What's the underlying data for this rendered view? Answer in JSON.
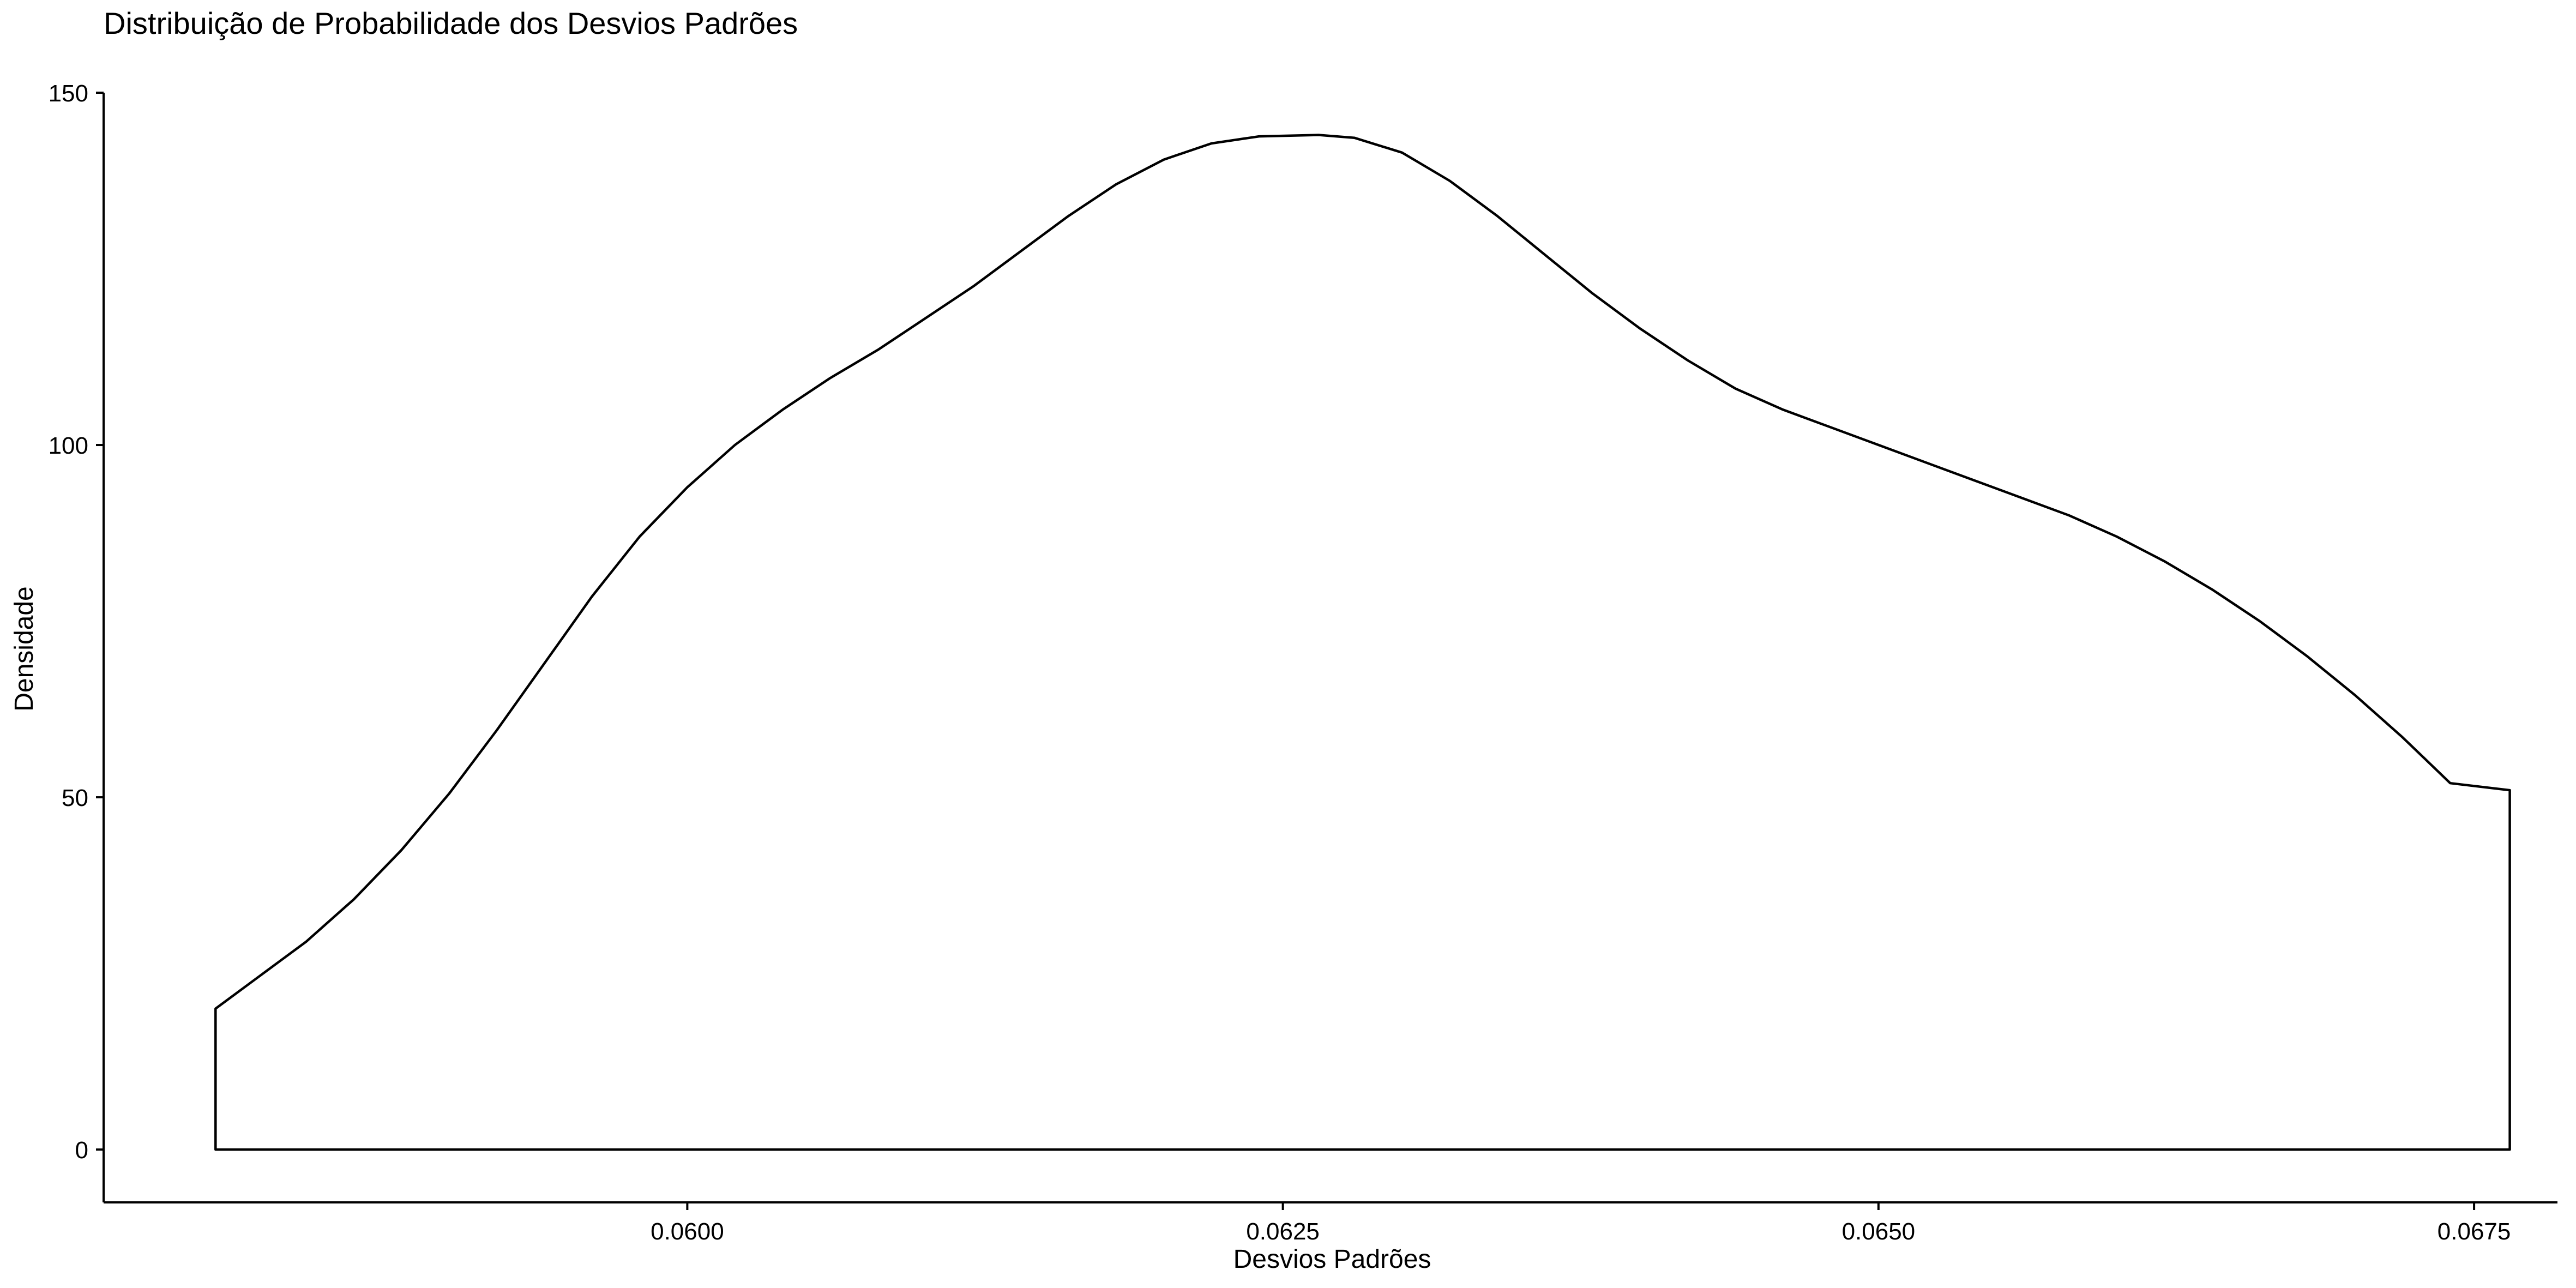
{
  "chart_data": {
    "type": "area",
    "title": "Distribuição de Probabilidade dos Desvios Padrões",
    "xlabel": "Desvios Padrões",
    "ylabel": "Densidade",
    "xlim": [
      0.05755,
      0.06785
    ],
    "ylim": [
      -7.5,
      150
    ],
    "grid": false,
    "legend": "none",
    "x_ticks": [
      0.06,
      0.0625,
      0.065,
      0.0675
    ],
    "x_tick_labels": [
      "0.0600",
      "0.0625",
      "0.0650",
      "0.0675"
    ],
    "y_ticks": [
      0,
      50,
      100,
      150
    ],
    "y_tick_labels": [
      "0",
      "50",
      "100",
      "150"
    ],
    "series": [
      {
        "name": "densidade",
        "fill": "#ffffff",
        "stroke": "#000000",
        "x": [
          0.05802,
          0.0582,
          0.0584,
          0.0586,
          0.0588,
          0.059,
          0.0592,
          0.0594,
          0.0596,
          0.0598,
          0.06,
          0.0602,
          0.0604,
          0.0606,
          0.0608,
          0.061,
          0.0612,
          0.0614,
          0.0616,
          0.0618,
          0.062,
          0.0622,
          0.0624,
          0.06265,
          0.0628,
          0.063,
          0.0632,
          0.0634,
          0.0636,
          0.0638,
          0.064,
          0.0642,
          0.0644,
          0.0646,
          0.0648,
          0.065,
          0.0652,
          0.0654,
          0.0656,
          0.0658,
          0.066,
          0.0662,
          0.0664,
          0.0666,
          0.0668,
          0.067,
          0.0672,
          0.0674,
          0.06765
        ],
        "y": [
          20,
          24.5,
          29.5,
          35.5,
          42.5,
          50.5,
          59.5,
          69,
          78.5,
          87,
          94,
          100,
          105,
          109.5,
          113.5,
          118,
          122.5,
          127.5,
          132.5,
          137,
          140.5,
          142.8,
          143.8,
          144,
          143.6,
          141.5,
          137.5,
          132.5,
          127,
          121.5,
          116.5,
          112,
          108,
          105,
          102.5,
          100,
          97.5,
          95,
          92.5,
          90,
          87,
          83.5,
          79.5,
          75,
          70,
          64.5,
          58.5,
          52,
          51
        ]
      }
    ]
  }
}
